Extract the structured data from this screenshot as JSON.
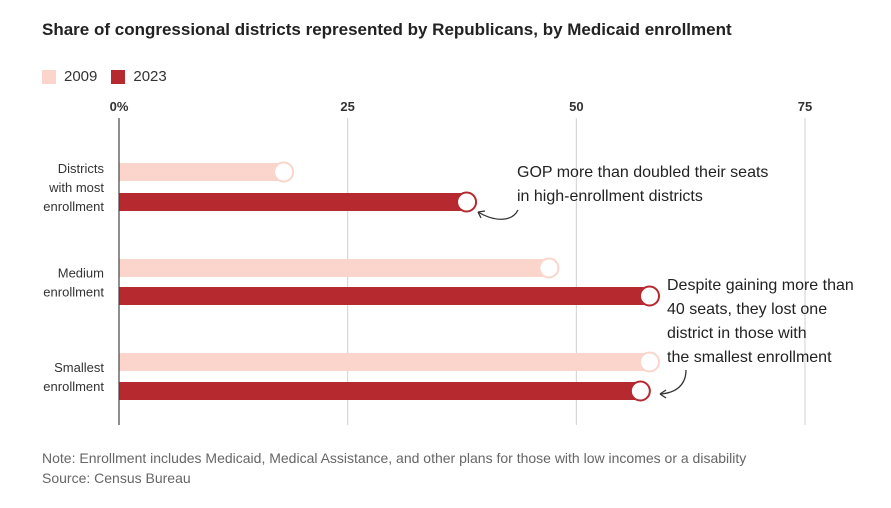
{
  "title": "Share of congressional districts represented by Republicans, by Medicaid enrollment",
  "legend": [
    {
      "label": "2009",
      "color": "#fbd5cc"
    },
    {
      "label": "2023",
      "color": "#b5292f"
    }
  ],
  "chart_data": {
    "type": "bar",
    "orientation": "horizontal",
    "categories": [
      [
        "Districts",
        "with most",
        "enrollment"
      ],
      [
        "Medium",
        "enrollment"
      ],
      [
        "Smallest",
        "enrollment"
      ]
    ],
    "series": [
      {
        "name": "2009",
        "values": [
          18,
          47,
          58
        ],
        "color": "#fbd5cc"
      },
      {
        "name": "2023",
        "values": [
          38,
          58,
          57
        ],
        "color": "#b5292f"
      }
    ],
    "xlim": [
      0,
      75
    ],
    "xticks": [
      {
        "value": 0,
        "label": "0%"
      },
      {
        "value": 25,
        "label": "25"
      },
      {
        "value": 50,
        "label": "50"
      },
      {
        "value": 75,
        "label": "75"
      }
    ],
    "grid": true,
    "legend_position": "top-left"
  },
  "annotations": [
    {
      "lines": [
        "GOP more than doubled their seats",
        "in high-enrollment districts"
      ]
    },
    {
      "lines": [
        "Despite gaining more than",
        "40 seats, they lost one",
        "district in those with",
        "the smallest enrollment"
      ]
    }
  ],
  "note": "Note: Enrollment includes Medicaid, Medical Assistance, and other plans for those with low incomes or a disability",
  "source": "Source: Census Bureau"
}
